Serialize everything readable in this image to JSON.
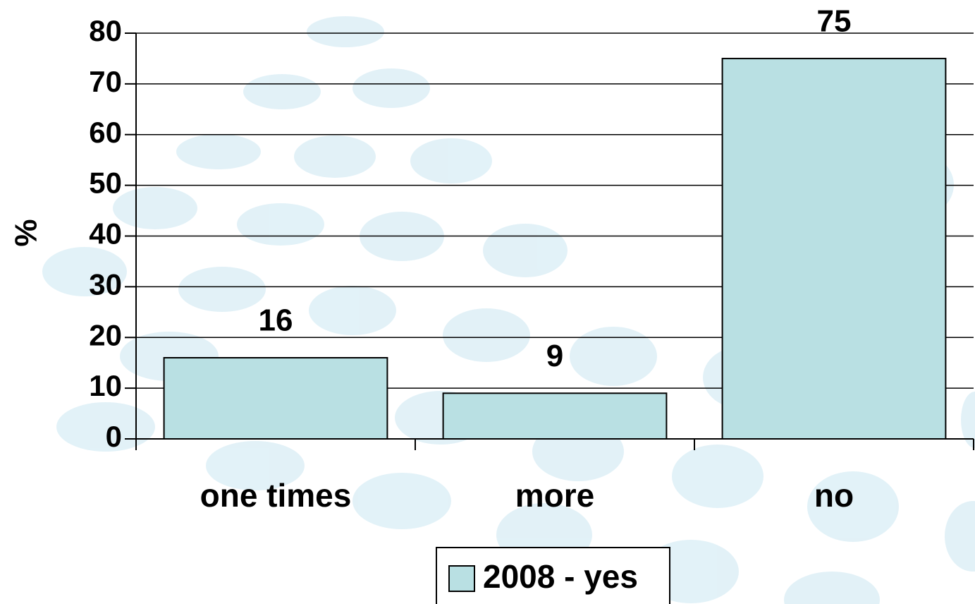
{
  "chart_data": {
    "type": "bar",
    "y_label": "%",
    "categories": [
      "one times",
      "more",
      "no"
    ],
    "series": [
      {
        "name": "2008 - yes",
        "color": "#b9e0e3",
        "values": [
          16,
          9,
          75
        ]
      }
    ],
    "ylim": [
      0,
      80
    ],
    "yticks": [
      0,
      10,
      20,
      30,
      40,
      50,
      60,
      70,
      80
    ],
    "grid": true,
    "legend": "bottom"
  }
}
